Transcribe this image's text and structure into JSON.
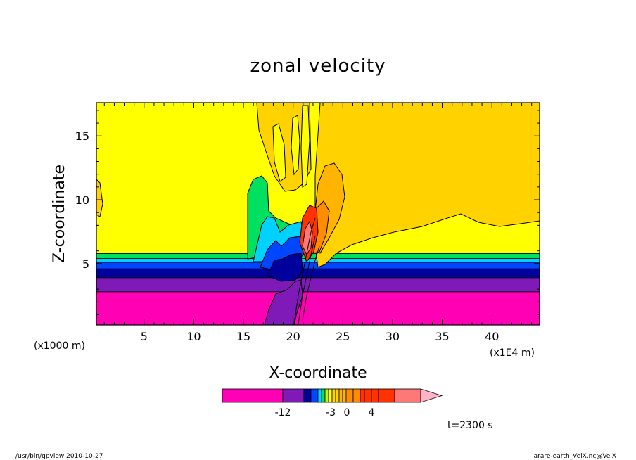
{
  "chart_data": {
    "type": "heatmap",
    "title": "zonal velocity",
    "xlabel": "X-coordinate",
    "ylabel": "Z-coordinate",
    "x_unit_left": "(x1000 m)",
    "x_unit_right": "(x1E4 m)",
    "x_ticks": [
      "5",
      "10",
      "15",
      "20",
      "25",
      "30",
      "35",
      "40"
    ],
    "y_ticks": [
      "5",
      "10",
      "15"
    ],
    "xlim": [
      0.2,
      44.8
    ],
    "ylim": [
      0.2,
      17.6
    ],
    "time_label": "t=2300 s",
    "colorbar": {
      "labels": [
        "-12",
        "-3",
        "0",
        "4"
      ],
      "colors": [
        "#ff00b4",
        "#7f1ab8",
        "#00009c",
        "#0046ff",
        "#00d2ff",
        "#00e060",
        "#c8f000",
        "#ffff00",
        "#ffd200",
        "#ffb400",
        "#ff8c00",
        "#ff3200",
        "#ff7878",
        "#ffb4c8"
      ]
    },
    "layers": [
      {
        "name": "magenta band",
        "z_from": 0.2,
        "z_to": 2.8,
        "color": "#ff00b4"
      },
      {
        "name": "purple band",
        "z_from": 2.8,
        "z_to": 3.9,
        "color": "#7f1ab8"
      },
      {
        "name": "dark blue band",
        "z_from": 3.9,
        "z_to": 4.6,
        "color": "#00009c"
      },
      {
        "name": "blue band",
        "z_from": 4.6,
        "z_to": 5.1,
        "color": "#0046ff"
      },
      {
        "name": "cyan band",
        "z_from": 5.1,
        "z_to": 5.4,
        "color": "#00d2ff"
      },
      {
        "name": "green band",
        "z_from": 5.4,
        "z_to": 5.8,
        "color": "#00e060"
      },
      {
        "name": "yellow region",
        "z_from": 5.8,
        "z_to": 17.6,
        "color": "#ffff00"
      }
    ]
  },
  "footer": {
    "left": "/usr/bin/gpview   2010-10-27",
    "right": "arare-earth_VelX.nc@VelX"
  }
}
